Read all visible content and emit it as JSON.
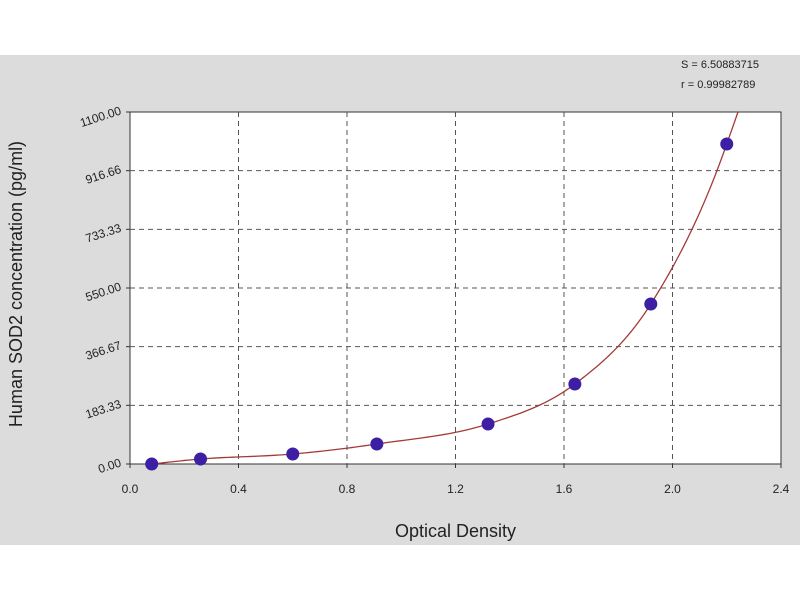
{
  "chart_data": {
    "type": "scatter",
    "title": "",
    "xlabel": "Optical Density",
    "ylabel": "Human SOD2 concentration (pg/ml)",
    "xlim": [
      0.0,
      2.4
    ],
    "ylim": [
      0.0,
      1100.0
    ],
    "x_ticks": [
      "0.0",
      "0.4",
      "0.8",
      "1.2",
      "1.6",
      "2.0",
      "2.4"
    ],
    "y_ticks": [
      "0.00",
      "183.33",
      "366.67",
      "550.00",
      "733.33",
      "916.66",
      "1100.00"
    ],
    "grid": true,
    "fit_stats": {
      "s_label": "S = 6.50883715",
      "r_label": "r = 0.99982789"
    },
    "series": [
      {
        "x": [
          0.08,
          0.26,
          0.6,
          0.91,
          1.32,
          1.64,
          1.92,
          2.2
        ],
        "y": [
          0,
          15.6,
          31.25,
          62.5,
          125,
          250,
          500,
          1000
        ]
      }
    ],
    "colors": {
      "point": "#3d1fa3",
      "curve": "#a33a3a",
      "plot_bg": "#ffffff",
      "frame_bg": "#dcdcdc",
      "grid": "#555555"
    }
  }
}
